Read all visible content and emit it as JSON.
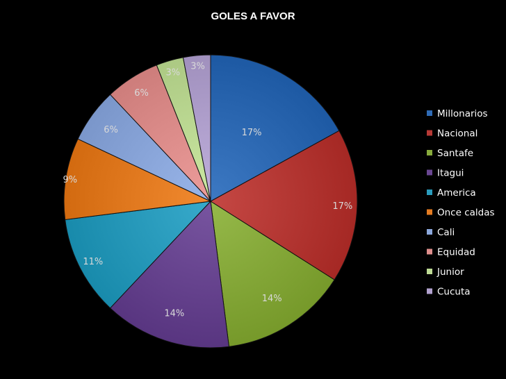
{
  "chart_data": {
    "type": "pie",
    "title": "GOLES A FAVOR",
    "legend_position": "right",
    "slices": [
      {
        "label": "Millonarios",
        "value": 17,
        "display": "17%",
        "color": "#2f6bb5"
      },
      {
        "label": "Nacional",
        "value": 17,
        "display": "17%",
        "color": "#b73a36"
      },
      {
        "label": "Santafe",
        "value": 14,
        "display": "14%",
        "color": "#88ab3c"
      },
      {
        "label": "Itagui",
        "value": 14,
        "display": "14%",
        "color": "#6a4792"
      },
      {
        "label": "America",
        "value": 11,
        "display": "11%",
        "color": "#2a9cbd"
      },
      {
        "label": "Once caldas",
        "value": 9,
        "display": "9%",
        "color": "#e47c22"
      },
      {
        "label": "Cali",
        "value": 6,
        "display": "6%",
        "color": "#8ca8dc"
      },
      {
        "label": "Equidad",
        "value": 6,
        "display": "6%",
        "color": "#df8f8d"
      },
      {
        "label": "Junior",
        "value": 3,
        "display": "3%",
        "color": "#bedb95"
      },
      {
        "label": "Cucuta",
        "value": 3,
        "display": "3%",
        "color": "#b2a2cf"
      }
    ]
  }
}
